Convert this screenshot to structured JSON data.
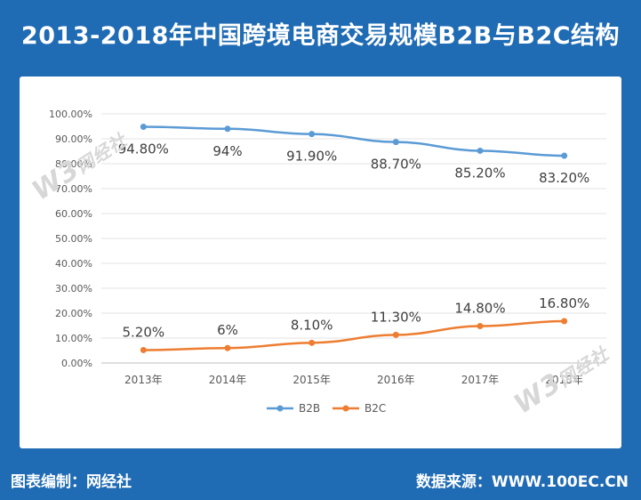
{
  "header": {
    "title": "2013-2018年中国跨境电商交易规模B2B与B2C结构"
  },
  "footer": {
    "left": "图表编制：网经社",
    "right": "数据来源：WWW.100EC.CN"
  },
  "watermark": {
    "logo": "W3",
    "name": "网经社",
    "sub": "100EC.CN"
  },
  "colors": {
    "b2b": "#5b9bd5",
    "b2c": "#ed7d31",
    "background": "#1f6bb4"
  },
  "chart_data": {
    "type": "line",
    "categories": [
      "2013年",
      "2014年",
      "2015年",
      "2016年",
      "2017年",
      "2018年"
    ],
    "series": [
      {
        "name": "B2B",
        "values": [
          94.8,
          94,
          91.9,
          88.7,
          85.2,
          83.2
        ],
        "labels": [
          "94.80%",
          "94%",
          "91.90%",
          "88.70%",
          "85.20%",
          "83.20%"
        ]
      },
      {
        "name": "B2C",
        "values": [
          5.2,
          6,
          8.1,
          11.3,
          14.8,
          16.8
        ],
        "labels": [
          "5.20%",
          "6%",
          "8.10%",
          "11.30%",
          "14.80%",
          "16.80%"
        ]
      }
    ],
    "ylim": [
      0,
      100
    ],
    "yticks": [
      "0.00%",
      "10.00%",
      "20.00%",
      "30.00%",
      "40.00%",
      "50.00%",
      "60.00%",
      "70.00%",
      "80.00%",
      "90.00%",
      "100.00%"
    ],
    "grid": true,
    "legend": "bottom"
  }
}
